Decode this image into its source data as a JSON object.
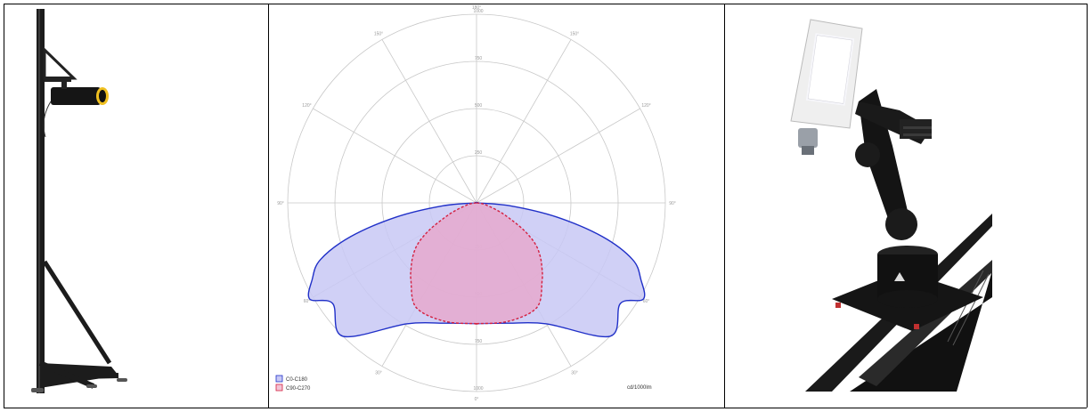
{
  "layout_table": {
    "columns": 3
  },
  "photos": {
    "left": {
      "subject": "goniophotometer-detector-stand"
    },
    "right": {
      "subject": "robotic-arm-goniophotometer-with-led-luminaire"
    }
  },
  "chart_data": {
    "type": "polar",
    "unit_label": "cd/1000lm",
    "angle_labels": [
      "180°",
      "150°",
      "120°",
      "90°",
      "60°",
      "30°",
      "0°",
      "30°",
      "60°",
      "90°",
      "120°",
      "150°"
    ],
    "radial_labels": [
      "1000",
      "750",
      "500",
      "250",
      "250",
      "500",
      "750",
      "1000"
    ],
    "rmax": 1000,
    "series": [
      {
        "name": "C0-C180",
        "color": "#2030c8",
        "fill": "#c8c8f5",
        "style": "solid",
        "angles_deg": [
          0,
          15,
          30,
          45,
          55,
          60,
          65,
          70,
          75,
          80,
          85,
          90
        ],
        "values": [
          640,
          660,
          740,
          1000,
          930,
          1020,
          960,
          880,
          690,
          430,
          180,
          0
        ]
      },
      {
        "name": "C90-C270",
        "color": "#d42040",
        "fill": "#e9a4c8",
        "style": "dashed",
        "angles_deg": [
          0,
          15,
          30,
          40,
          45,
          50,
          55,
          60,
          65,
          70,
          80,
          90
        ],
        "values": [
          640,
          650,
          640,
          540,
          490,
          440,
          380,
          290,
          190,
          120,
          40,
          0
        ]
      }
    ],
    "legend": [
      {
        "label": "C0-C180",
        "swatch": "#c8c8f5",
        "border": "#2030c8"
      },
      {
        "label": "C90-C270",
        "swatch": "#f2c4d6",
        "border": "#d42040"
      }
    ]
  }
}
